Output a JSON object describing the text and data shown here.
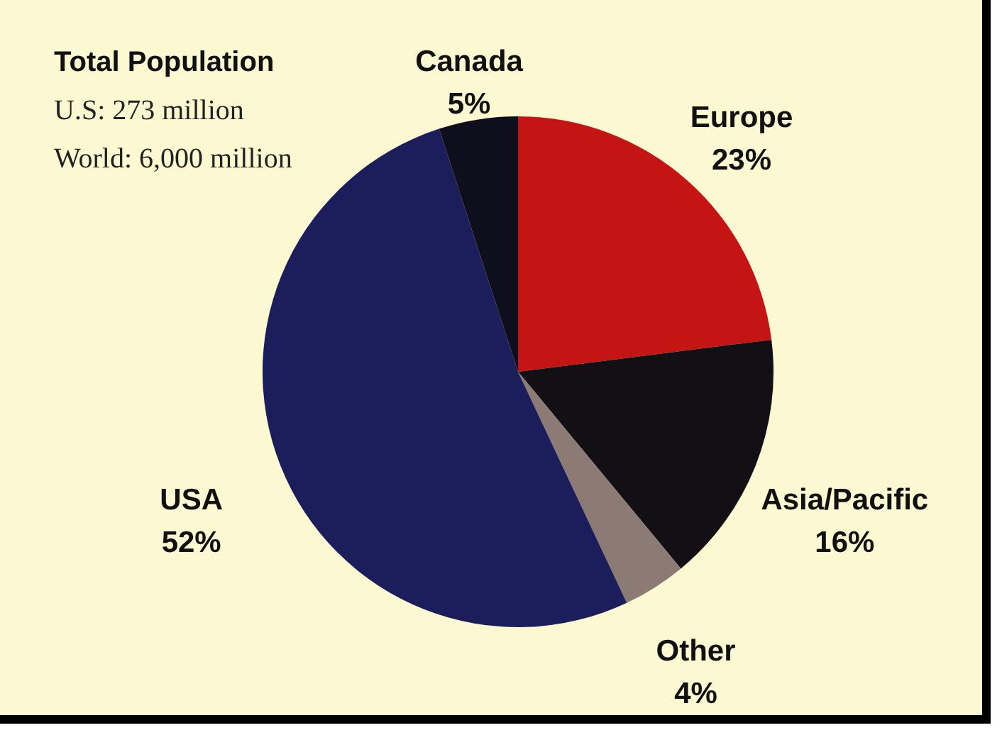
{
  "chart_data": {
    "type": "pie",
    "title": "Total Population",
    "annotations": [
      "U.S: 273 million",
      "World: 6,000 million"
    ],
    "categories": [
      "Europe",
      "Asia/Pacific",
      "Other",
      "USA",
      "Canada"
    ],
    "values": [
      23,
      16,
      4,
      52,
      5
    ],
    "value_labels": [
      "23%",
      "16%",
      "4%",
      "52%",
      "5%"
    ],
    "colors": [
      "#c41414",
      "#121014",
      "#8c7a74",
      "#1c1e5c",
      "#0e0e1c"
    ]
  }
}
